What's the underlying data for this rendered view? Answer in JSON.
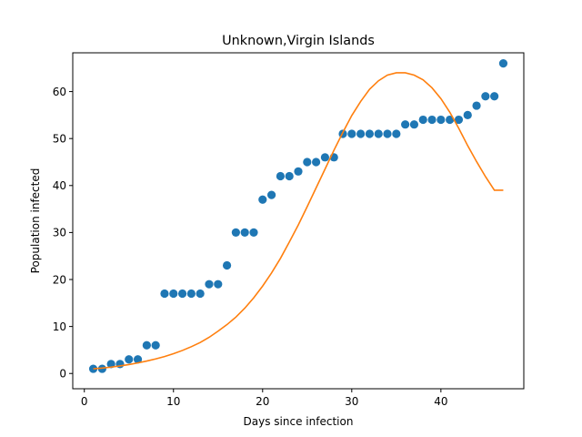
{
  "chart_data": {
    "type": "scatter",
    "title": "Unknown,Virgin Islands",
    "xlabel": "Days since infection",
    "ylabel": "Population infected",
    "xlim": [
      -1.3,
      49.3
    ],
    "ylim": [
      -3.25,
      68.25
    ],
    "xticks": [
      0,
      10,
      20,
      30,
      40
    ],
    "yticks": [
      0,
      10,
      20,
      30,
      40,
      50,
      60
    ],
    "grid": false,
    "series": [
      {
        "kind": "scatter",
        "color": "#1f77b4",
        "x": [
          1,
          2,
          3,
          4,
          5,
          6,
          7,
          8,
          9,
          10,
          11,
          12,
          13,
          14,
          15,
          16,
          17,
          18,
          19,
          20,
          21,
          22,
          23,
          24,
          25,
          26,
          27,
          28,
          29,
          30,
          31,
          32,
          33,
          34,
          35,
          36,
          37,
          38,
          39,
          40,
          41,
          42,
          43,
          44,
          45,
          46,
          47
        ],
        "y": [
          1,
          1,
          2,
          2,
          3,
          3,
          6,
          6,
          17,
          17,
          17,
          17,
          17,
          19,
          19,
          23,
          30,
          30,
          30,
          37,
          38,
          42,
          42,
          43,
          45,
          45,
          46,
          46,
          51,
          51,
          51,
          51,
          51,
          51,
          51,
          53,
          53,
          54,
          54,
          54,
          54,
          54,
          55,
          57,
          59,
          59,
          66
        ]
      },
      {
        "kind": "line",
        "color": "#ff7f0e",
        "x": [
          1,
          2,
          3,
          4,
          5,
          6,
          7,
          8,
          9,
          10,
          11,
          12,
          13,
          14,
          15,
          16,
          17,
          18,
          19,
          20,
          21,
          22,
          23,
          24,
          25,
          26,
          27,
          28,
          29,
          30,
          31,
          32,
          33,
          34,
          35,
          36,
          37,
          38,
          39,
          40,
          41,
          42,
          43,
          44,
          45,
          46,
          47
        ],
        "y": [
          1.0,
          1.15,
          1.35,
          1.6,
          1.9,
          2.25,
          2.65,
          3.1,
          3.6,
          4.2,
          4.9,
          5.7,
          6.6,
          7.7,
          9.0,
          10.4,
          12.0,
          13.9,
          16.1,
          18.6,
          21.4,
          24.5,
          28.0,
          31.6,
          35.5,
          39.5,
          43.5,
          47.5,
          51.3,
          54.9,
          57.9,
          60.5,
          62.3,
          63.5,
          64.0,
          64.0,
          63.5,
          62.5,
          60.8,
          58.5,
          55.6,
          52.2,
          48.5,
          45.1,
          41.9,
          39.0,
          39.0
        ]
      }
    ]
  }
}
